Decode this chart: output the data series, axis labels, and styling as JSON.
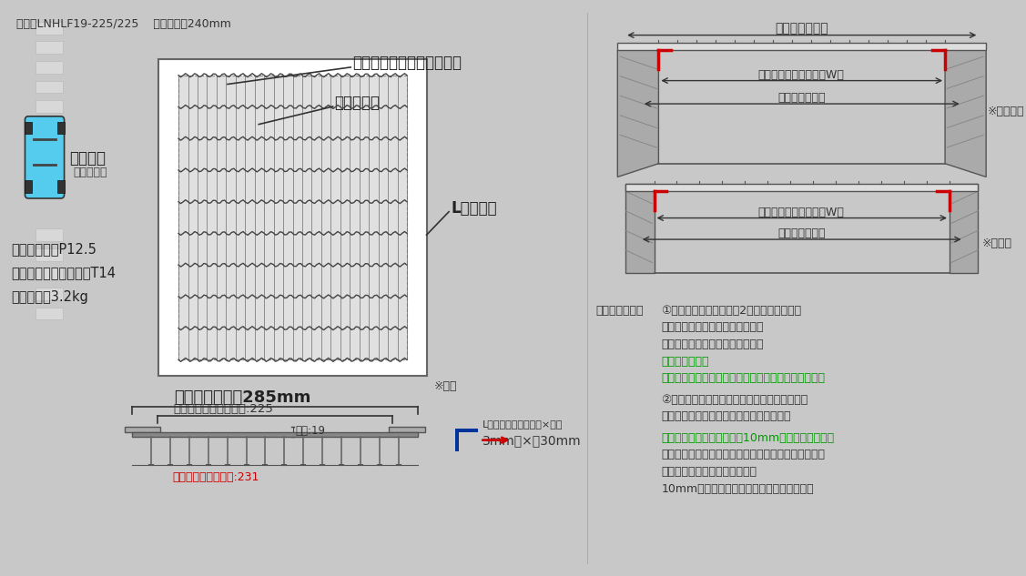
{
  "bg_color": "#c8c8c8",
  "title_text": "商品名LNHLF19-225/225    適用ます幅240mm",
  "spec_pitch": "ピッチ：細目P12.5",
  "spec_load": "耐荷重：中型トラックT14",
  "spec_weight": "本体重量：3.2kg",
  "direction_label": "横断方向",
  "direction_sub": "（横断用）",
  "label_main": "主部材（ベアリングバー）",
  "label_cross": "クロスバー",
  "label_angle": "Lアングル",
  "label_hosome": "※細目",
  "bottom_title": "溝幅本体の外幅285mm",
  "inner_no_angle": "アングル含まずの内幅:225",
  "height_label": "高さ:19",
  "inner_with_angle": "アングル含めた内幅:231",
  "angle_spec_label": "Lアングル寸法（厚み×幅）",
  "angle_spec_value": "3mm　×　30mm",
  "right_title_top": "溝幅本体の外幅",
  "right_label1a": "アングル含めた内幅（W）",
  "right_label1b": "ます穴の適用幅",
  "right_note1": "※タメマス",
  "right_label2a": "アングル含めた内幅（W）",
  "right_label2b": "ます穴の適用幅",
  "right_note2": "※改良枡",
  "measurement_title": "測定ポイント：",
  "t1l1": "①「タメマス」の場合は2段がありまして、",
  "t1l2": "下の深い段であるます穴の寸法は",
  "t1l3": "「上の浅い段」と違いますので、",
  "t1l4g": "アングル含めた",
  "t1l5g": "内幅が「上の浅い段」に合うかが測定ポイントです。",
  "t2l1": "②「改良枡」の場合はます穴の寸法にアングル",
  "t2l2": "含めた内幅が合うかが測定ポイントです。",
  "t3l1g": "「ます穴の適用幅」よりも10mm程度小さい内幅を",
  "t3l2": "推奨しています。ピッタリすぎると壁面にぶつかって",
  "t3l3": "設置できない可能性もあるため",
  "t3l4": "10mm小さいくらいがベストだと思います。",
  "color_red": "#cc0000",
  "color_green": "#009900",
  "color_dark": "#222222",
  "color_blue_sq": "#003399",
  "color_red_arrow": "#cc0000",
  "color_line": "#555555",
  "color_wall": "#aaaaaa",
  "color_hatch": "#888888"
}
